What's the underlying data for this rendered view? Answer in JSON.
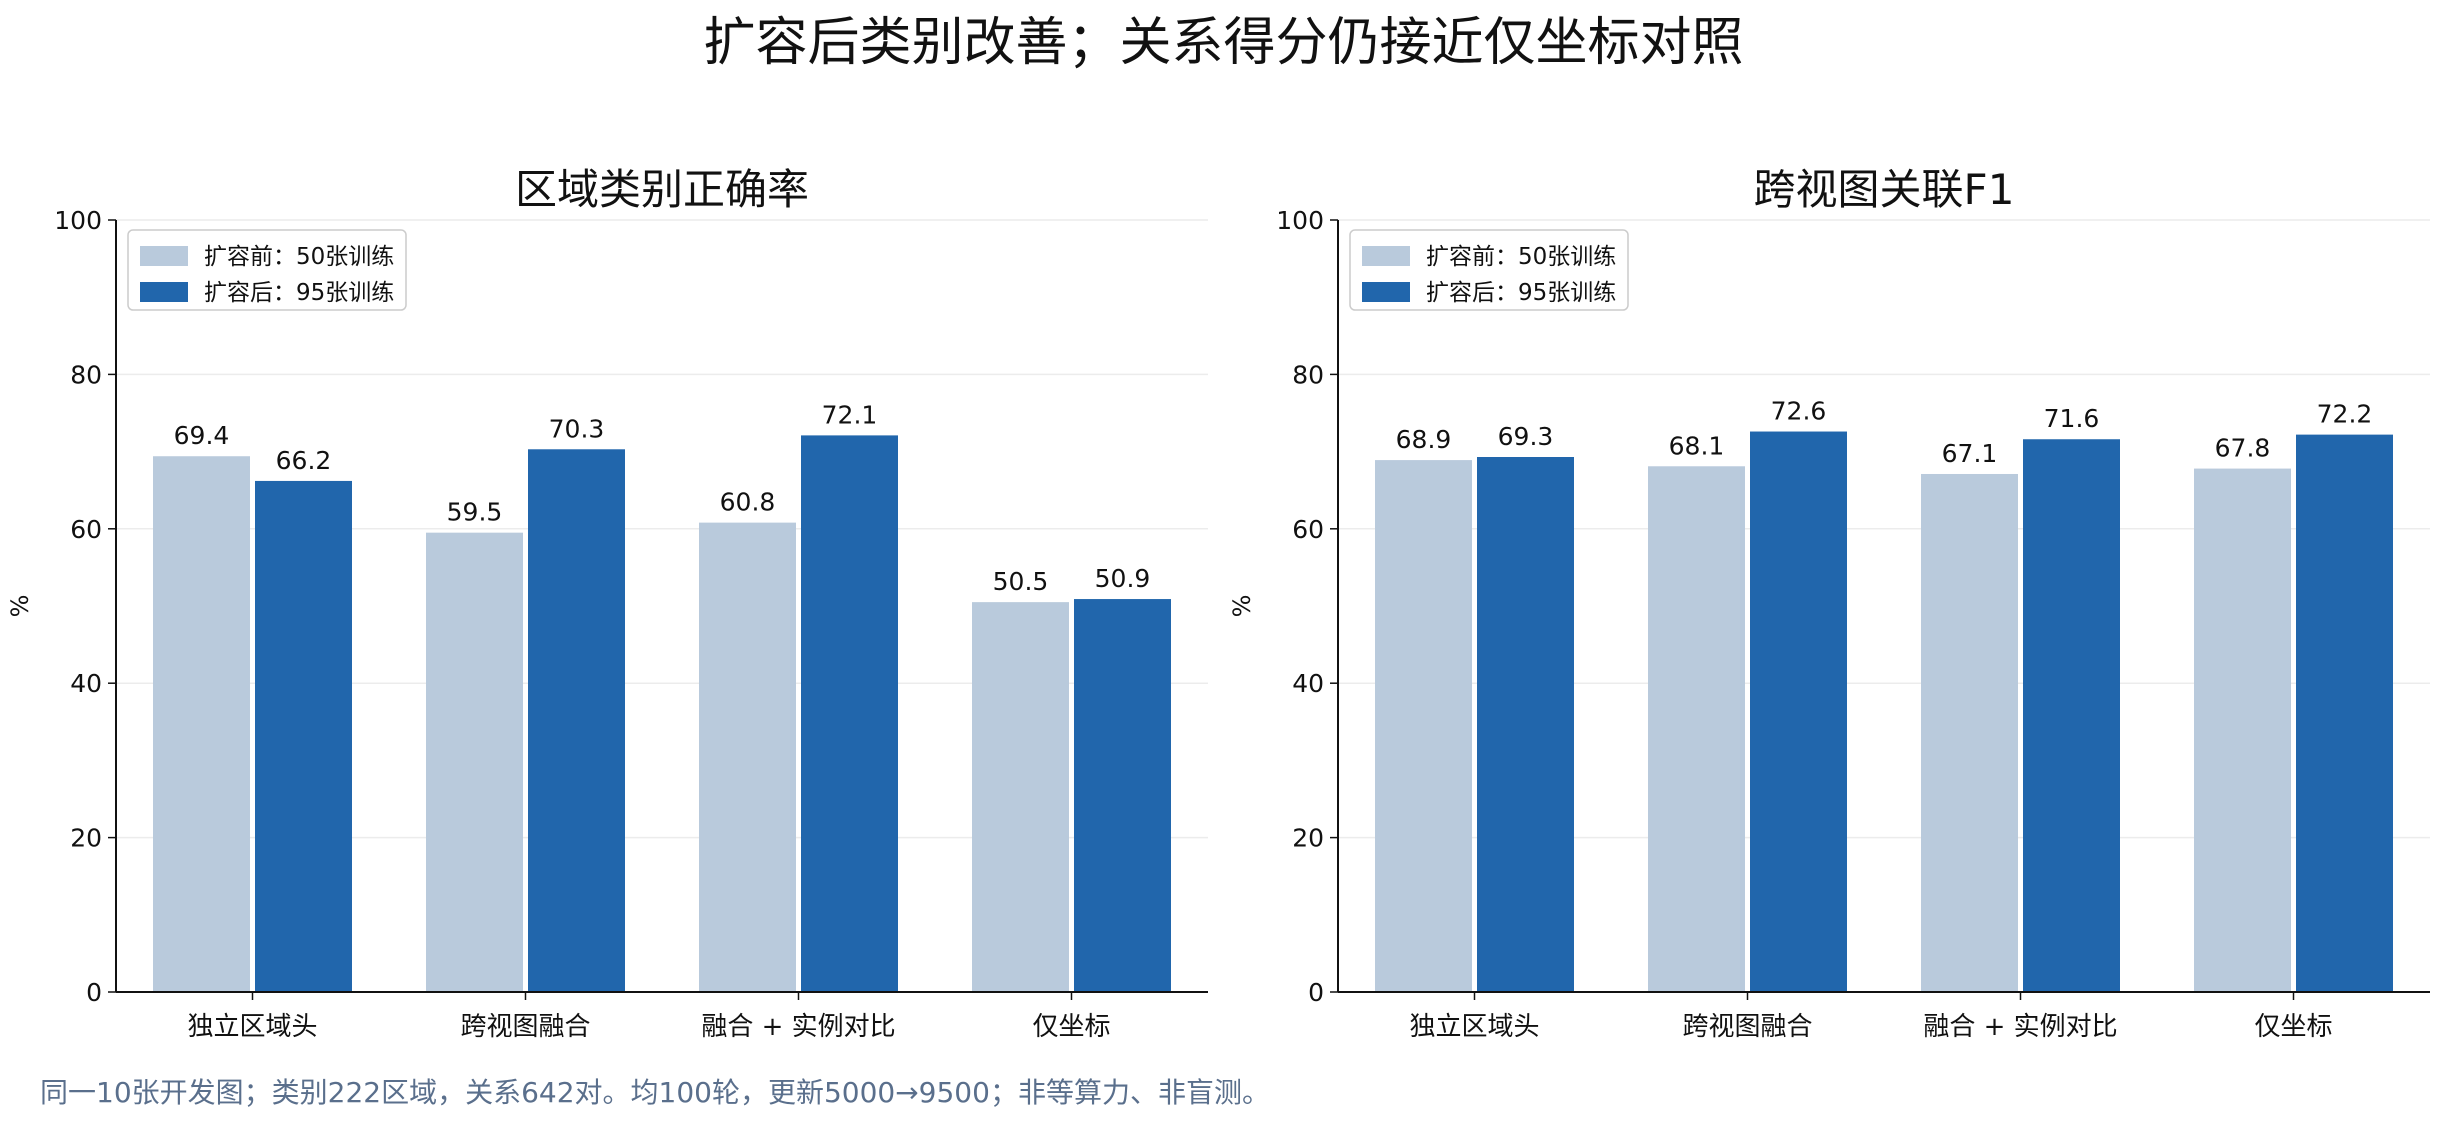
{
  "suptitle": "扩容后类别改善；关系得分仍接近仅坐标对照",
  "footnote": "同一10张开发图；类别222区域，关系642对。均100轮，更新5000→9500；非等算力、非盲测。",
  "colors": {
    "before": "#b9cadc",
    "after": "#2166ac",
    "grid": "#ececec",
    "axis": "#111111",
    "footnote": "#5a6f8c"
  },
  "chart_data": [
    {
      "type": "bar",
      "title": "区域类别正确率",
      "ylabel": "%",
      "ylim": [
        0,
        100
      ],
      "yticks": [
        0,
        20,
        40,
        60,
        80,
        100
      ],
      "grid": true,
      "legend_position": "top-left",
      "categories": [
        "独立区域头",
        "跨视图融合",
        "融合 + 实例对比",
        "仅坐标"
      ],
      "series": [
        {
          "name": "扩容前：50张训练",
          "values": [
            69.4,
            59.5,
            60.8,
            50.5
          ]
        },
        {
          "name": "扩容后：95张训练",
          "values": [
            66.2,
            70.3,
            72.1,
            50.9
          ]
        }
      ]
    },
    {
      "type": "bar",
      "title": "跨视图关联F1",
      "ylabel": "%",
      "ylim": [
        0,
        100
      ],
      "yticks": [
        0,
        20,
        40,
        60,
        80,
        100
      ],
      "grid": true,
      "legend_position": "top-left",
      "categories": [
        "独立区域头",
        "跨视图融合",
        "融合 + 实例对比",
        "仅坐标"
      ],
      "series": [
        {
          "name": "扩容前：50张训练",
          "values": [
            68.9,
            68.1,
            67.1,
            67.8
          ]
        },
        {
          "name": "扩容后：95张训练",
          "values": [
            69.3,
            72.6,
            71.6,
            72.2
          ]
        }
      ]
    }
  ]
}
